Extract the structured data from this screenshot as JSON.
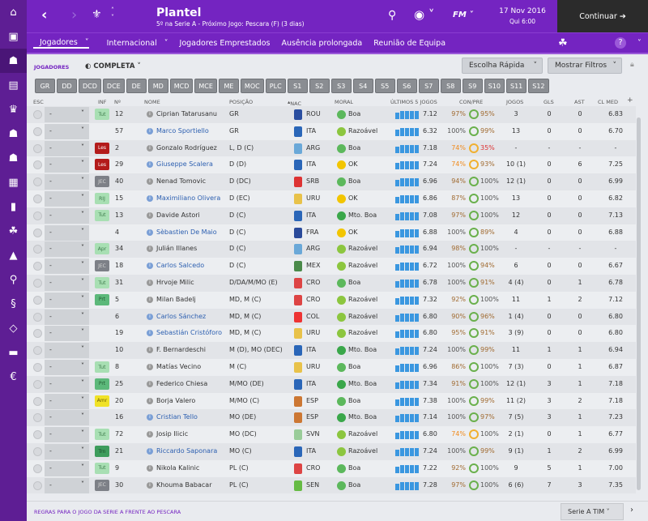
{
  "header": {
    "title": "Plantel",
    "subtitle": "5º na Serie A - Próximo Jogo: Pescara (F) (3 dias)",
    "date": "17 Nov 2016",
    "time": "Qui 6:00",
    "continue": "Continuar",
    "fm_label": "FM"
  },
  "subnav": [
    "Jogadores",
    "Internacional",
    "Jogadores Emprestados",
    "Ausência prolongada",
    "Reunião de Equipa"
  ],
  "toolbar": {
    "section": "JOGADORES",
    "view": "COMPLETA",
    "quick": "Escolha Rápida",
    "filters": "Mostrar Filtros"
  },
  "positions": [
    "GR",
    "DD",
    "DCD",
    "DCE",
    "DE",
    "MD",
    "MCD",
    "MCE",
    "ME",
    "MOC",
    "PLC",
    "S1",
    "S2",
    "S3",
    "S4",
    "S5",
    "S6",
    "S7",
    "S8",
    "S9",
    "S10",
    "S11",
    "S12"
  ],
  "columns": {
    "esc": "ESC",
    "inf": "INF",
    "num": "Nº",
    "name": "NOME",
    "pos": "POSIÇÃO",
    "nac": "NAC",
    "moral": "MORAL",
    "last5": "ÚLTIMOS 5 JOGOS",
    "conpre": "CON/PRE",
    "jogos": "JOGOS",
    "gls": "GLS",
    "ast": "AST",
    "clmed": "CL MED"
  },
  "players": [
    {
      "inf": "Tut",
      "num": "12",
      "name": "Ciprian Tatarusanu",
      "link": false,
      "pos": "GR",
      "nac": "ROU",
      "moral": "Boa",
      "l5": "7.12",
      "con": "97%",
      "pre": "95%",
      "jogos": "3",
      "gls": "0",
      "ast": "0",
      "cl": "6.83"
    },
    {
      "inf": "",
      "num": "57",
      "name": "Marco Sportiello",
      "link": true,
      "pos": "GR",
      "nac": "ITA",
      "moral": "Razoável",
      "l5": "6.32",
      "con": "100%",
      "pre": "99%",
      "jogos": "13",
      "gls": "0",
      "ast": "0",
      "cl": "6.70"
    },
    {
      "inf": "Les",
      "num": "2",
      "name": "Gonzalo Rodríguez",
      "link": false,
      "pos": "L, D (C)",
      "nac": "ARG",
      "moral": "Boa",
      "l5": "7.18",
      "con": "74%",
      "pre": "35%",
      "jogos": "-",
      "gls": "-",
      "ast": "-",
      "cl": "-"
    },
    {
      "inf": "Les",
      "num": "29",
      "name": "Giuseppe Scalera",
      "link": true,
      "pos": "D (D)",
      "nac": "ITA",
      "moral": "OK",
      "l5": "7.24",
      "con": "74%",
      "pre": "93%",
      "jogos": "10 (1)",
      "gls": "0",
      "ast": "6",
      "cl": "7.25"
    },
    {
      "inf": "JEC",
      "num": "40",
      "name": "Nenad Tomovic",
      "link": false,
      "pos": "D (DC)",
      "nac": "SRB",
      "moral": "Boa",
      "l5": "6.96",
      "con": "94%",
      "pre": "100%",
      "jogos": "12 (1)",
      "gls": "0",
      "ast": "0",
      "cl": "6.99"
    },
    {
      "inf": "RIJ",
      "num": "15",
      "name": "Maximiliano Olivera",
      "link": true,
      "pos": "D (EC)",
      "nac": "URU",
      "moral": "OK",
      "l5": "6.86",
      "con": "87%",
      "pre": "100%",
      "jogos": "13",
      "gls": "0",
      "ast": "0",
      "cl": "6.82"
    },
    {
      "inf": "Tut",
      "num": "13",
      "name": "Davide Astori",
      "link": false,
      "pos": "D (C)",
      "nac": "ITA",
      "moral": "Mto. Boa",
      "l5": "7.08",
      "con": "97%",
      "pre": "100%",
      "jogos": "12",
      "gls": "0",
      "ast": "0",
      "cl": "7.13"
    },
    {
      "inf": "",
      "num": "4",
      "name": "Sèbastien De Maio",
      "link": true,
      "pos": "D (C)",
      "nac": "FRA",
      "moral": "OK",
      "l5": "6.88",
      "con": "100%",
      "pre": "89%",
      "jogos": "4",
      "gls": "0",
      "ast": "0",
      "cl": "6.88"
    },
    {
      "inf": "Apr",
      "num": "34",
      "name": "Julián Illanes",
      "link": false,
      "pos": "D (C)",
      "nac": "ARG",
      "moral": "Razoável",
      "l5": "6.94",
      "con": "98%",
      "pre": "100%",
      "jogos": "-",
      "gls": "-",
      "ast": "-",
      "cl": "-"
    },
    {
      "inf": "JEC",
      "num": "18",
      "name": "Carlos Salcedo",
      "link": true,
      "pos": "D (C)",
      "nac": "MEX",
      "moral": "Razoável",
      "l5": "6.72",
      "con": "100%",
      "pre": "94%",
      "jogos": "6",
      "gls": "0",
      "ast": "0",
      "cl": "6.67"
    },
    {
      "inf": "Tut",
      "num": "31",
      "name": "Hrvoje Milic",
      "link": false,
      "pos": "D/DA/M/MO (E)",
      "nac": "CRO",
      "moral": "Boa",
      "l5": "6.78",
      "con": "100%",
      "pre": "91%",
      "jogos": "4 (4)",
      "gls": "0",
      "ast": "1",
      "cl": "6.78"
    },
    {
      "inf": "Prt",
      "num": "5",
      "name": "Milan Badelj",
      "link": false,
      "pos": "MD, M (C)",
      "nac": "CRO",
      "moral": "Razoável",
      "l5": "7.32",
      "con": "92%",
      "pre": "100%",
      "jogos": "11",
      "gls": "1",
      "ast": "2",
      "cl": "7.12"
    },
    {
      "inf": "",
      "num": "6",
      "name": "Carlos Sánchez",
      "link": true,
      "pos": "MD, M (C)",
      "nac": "COL",
      "moral": "Razoável",
      "l5": "6.80",
      "con": "90%",
      "pre": "96%",
      "jogos": "1 (4)",
      "gls": "0",
      "ast": "0",
      "cl": "6.80"
    },
    {
      "inf": "",
      "num": "19",
      "name": "Sebastián Cristóforo",
      "link": true,
      "pos": "MD, M (C)",
      "nac": "URU",
      "moral": "Razoável",
      "l5": "6.80",
      "con": "95%",
      "pre": "91%",
      "jogos": "3 (9)",
      "gls": "0",
      "ast": "0",
      "cl": "6.80"
    },
    {
      "inf": "",
      "num": "10",
      "name": "F. Bernardeschi",
      "link": false,
      "pos": "M (D), MO (DEC)",
      "nac": "ITA",
      "moral": "Mto. Boa",
      "l5": "7.24",
      "con": "100%",
      "pre": "99%",
      "jogos": "11",
      "gls": "1",
      "ast": "1",
      "cl": "6.94"
    },
    {
      "inf": "Tut",
      "num": "8",
      "name": "Matías Vecino",
      "link": false,
      "pos": "M (C)",
      "nac": "URU",
      "moral": "Boa",
      "l5": "6.96",
      "con": "86%",
      "pre": "100%",
      "jogos": "7 (3)",
      "gls": "0",
      "ast": "1",
      "cl": "6.87"
    },
    {
      "inf": "Prt",
      "num": "25",
      "name": "Federico Chiesa",
      "link": false,
      "pos": "M/MO (DE)",
      "nac": "ITA",
      "moral": "Mto. Boa",
      "l5": "7.34",
      "con": "91%",
      "pre": "100%",
      "jogos": "12 (1)",
      "gls": "3",
      "ast": "1",
      "cl": "7.18"
    },
    {
      "inf": "Amr",
      "num": "20",
      "name": "Borja Valero",
      "link": false,
      "pos": "M/MO (C)",
      "nac": "ESP",
      "moral": "Boa",
      "l5": "7.38",
      "con": "100%",
      "pre": "99%",
      "jogos": "11 (2)",
      "gls": "3",
      "ast": "2",
      "cl": "7.18"
    },
    {
      "inf": "",
      "num": "16",
      "name": "Cristian Tello",
      "link": true,
      "pos": "MO (DE)",
      "nac": "ESP",
      "moral": "Mto. Boa",
      "l5": "7.14",
      "con": "100%",
      "pre": "97%",
      "jogos": "7 (5)",
      "gls": "3",
      "ast": "1",
      "cl": "7.23"
    },
    {
      "inf": "Tut",
      "num": "72",
      "name": "Josip Ilicic",
      "link": false,
      "pos": "MO (DC)",
      "nac": "SVN",
      "moral": "Razoável",
      "l5": "6.80",
      "con": "74%",
      "pre": "100%",
      "jogos": "2 (1)",
      "gls": "0",
      "ast": "1",
      "cl": "6.77"
    },
    {
      "inf": "Trn",
      "num": "21",
      "name": "Riccardo Saponara",
      "link": true,
      "pos": "MO (C)",
      "nac": "ITA",
      "moral": "Razoável",
      "l5": "7.24",
      "con": "100%",
      "pre": "99%",
      "jogos": "9 (1)",
      "gls": "1",
      "ast": "2",
      "cl": "6.99"
    },
    {
      "inf": "Tut",
      "num": "9",
      "name": "Nikola Kalinic",
      "link": false,
      "pos": "PL (C)",
      "nac": "CRO",
      "moral": "Boa",
      "l5": "7.22",
      "con": "92%",
      "pre": "100%",
      "jogos": "9",
      "gls": "5",
      "ast": "1",
      "cl": "7.00"
    },
    {
      "inf": "JEC",
      "num": "30",
      "name": "Khouma Babacar",
      "link": false,
      "pos": "PL (C)",
      "nac": "SEN",
      "moral": "Boa",
      "l5": "7.28",
      "con": "97%",
      "pre": "100%",
      "jogos": "6 (6)",
      "gls": "7",
      "ast": "3",
      "cl": "7.35"
    }
  ],
  "footer": {
    "rules": "REGRAS PARA O JOGO DA SERIE A FRENTE AO PESCARA",
    "competition": "Serie A TIM"
  },
  "colors": {
    "brand": "#7424c1",
    "sidebar": "#5e1e94",
    "link": "#2c5fb0",
    "bar": "#3a97e0"
  }
}
